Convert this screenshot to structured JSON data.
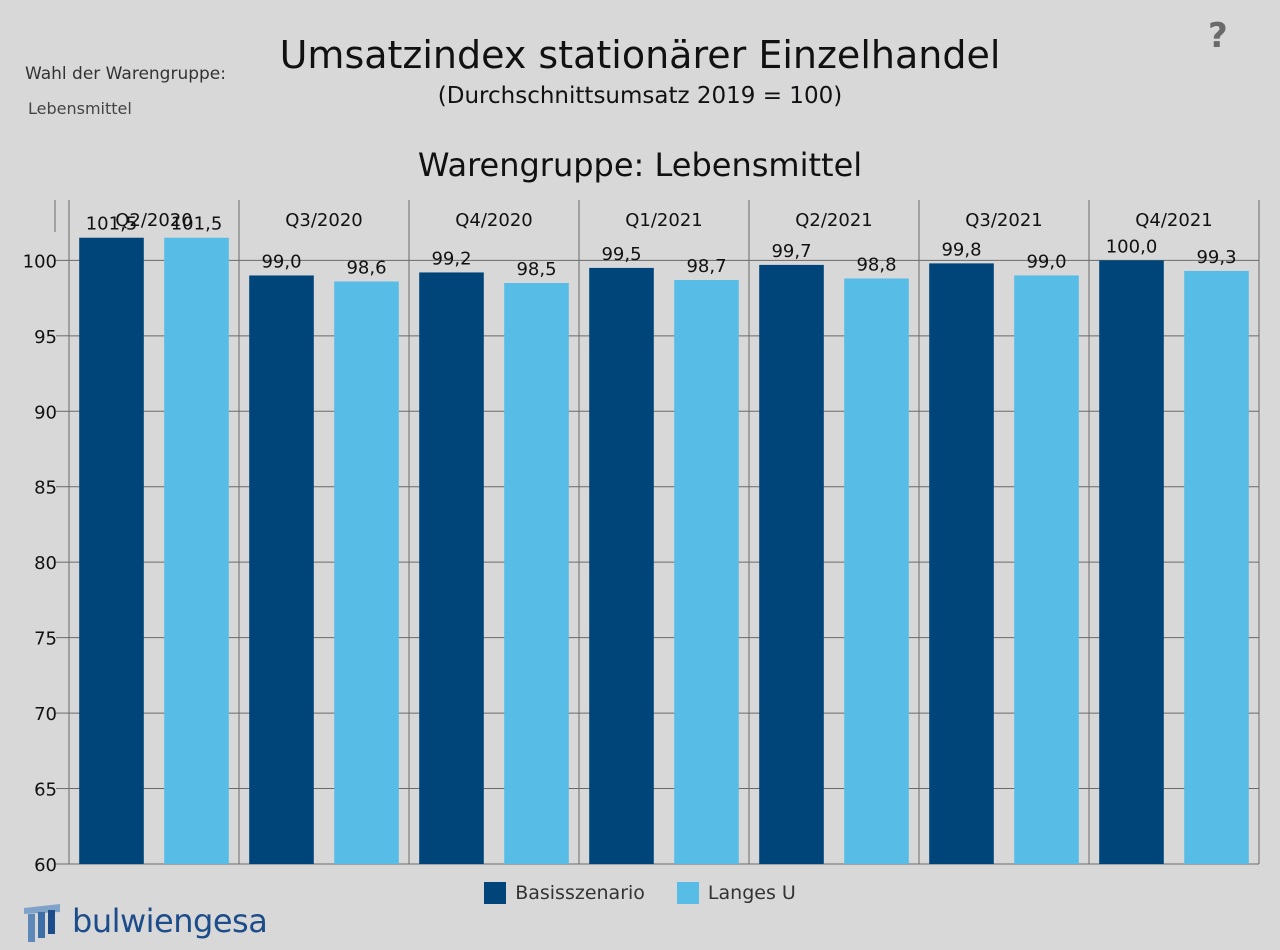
{
  "filter": {
    "label": "Wahl der Warengruppe:",
    "value": "Lebensmittel"
  },
  "header": {
    "title": "Umsatzindex stationärer Einzelhandel",
    "subtitle": "(Durchschnittsumsatz 2019 = 100)",
    "help_glyph": "?"
  },
  "brand": {
    "name": "bulwiengesa"
  },
  "colors": {
    "basis": "#00457a",
    "langes_u": "#58bde6",
    "background": "#d9d8d9",
    "grid": "#6a6a6a"
  },
  "chart_data": {
    "type": "bar",
    "title": "Warengruppe: Lebensmittel",
    "categories": [
      "Q2/2020",
      "Q3/2020",
      "Q4/2020",
      "Q1/2021",
      "Q2/2021",
      "Q3/2021",
      "Q4/2021"
    ],
    "series": [
      {
        "name": "Basisszenario",
        "values": [
          101.5,
          99.0,
          99.2,
          99.5,
          99.7,
          99.8,
          100.0
        ],
        "labels": [
          "101,5",
          "99,0",
          "99,2",
          "99,5",
          "99,7",
          "99,8",
          "100,0"
        ]
      },
      {
        "name": "Langes U",
        "values": [
          101.5,
          98.6,
          98.5,
          98.7,
          98.8,
          99.0,
          99.3
        ],
        "labels": [
          "101,5",
          "98,6",
          "98,5",
          "98,7",
          "98,8",
          "99,0",
          "99,3"
        ]
      }
    ],
    "ylim": [
      60,
      104
    ],
    "yticks": [
      60,
      65,
      70,
      75,
      80,
      85,
      90,
      95,
      100
    ],
    "grid": true,
    "category_axis": "top",
    "legend": "bottom-center"
  }
}
